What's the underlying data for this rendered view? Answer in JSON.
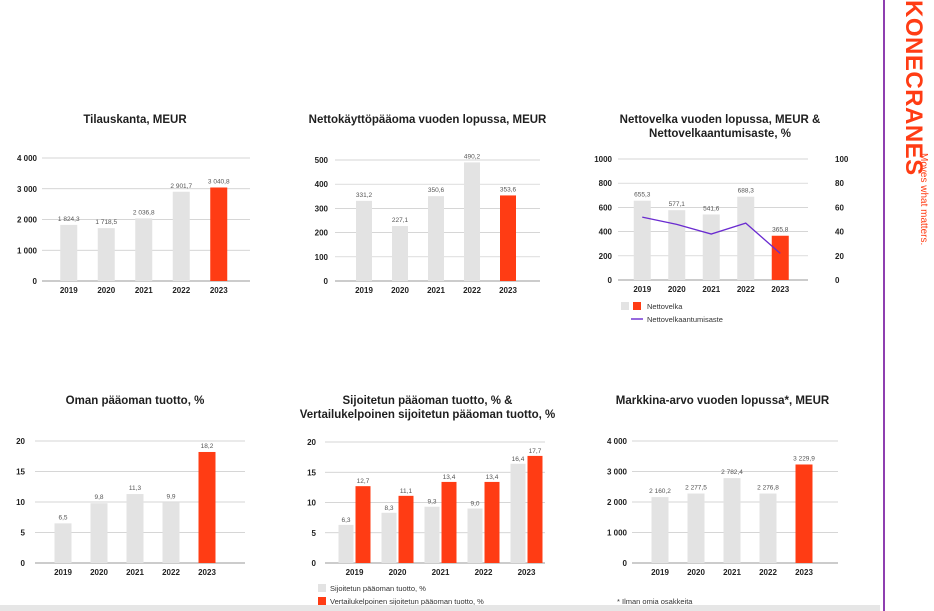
{
  "brand": {
    "logo": "KONECRANES",
    "tagline": "Moves what matters."
  },
  "colors": {
    "bar_gray": "#e3e3e3",
    "bar_red": "#ff3c14",
    "line_purple": "#6a2bd0"
  },
  "chart_data": [
    {
      "type": "bar",
      "title": "Tilauskanta, MEUR",
      "categories": [
        "2019",
        "2020",
        "2021",
        "2022",
        "2023"
      ],
      "values": [
        1824.3,
        1718.5,
        2036.8,
        2901.7,
        3040.8
      ],
      "value_labels": [
        "1 824,3",
        "1 718,5",
        "2 036,8",
        "2 901,7",
        "3 040,8"
      ],
      "highlight_index": 4,
      "ylim": [
        0,
        4000
      ],
      "yticks": [
        0,
        1000,
        2000,
        3000,
        4000
      ],
      "ytick_labels": [
        "0",
        "1 000",
        "2 000",
        "3 000",
        "4 000"
      ],
      "grid": true
    },
    {
      "type": "bar",
      "title": "Nettokäyttöpääoma vuoden lopussa, MEUR",
      "categories": [
        "2019",
        "2020",
        "2021",
        "2022",
        "2023"
      ],
      "values": [
        331.2,
        227.1,
        350.6,
        490.2,
        353.6
      ],
      "value_labels": [
        "331,2",
        "227,1",
        "350,6",
        "490,2",
        "353,6"
      ],
      "highlight_index": 4,
      "ylim": [
        0,
        500
      ],
      "yticks": [
        0,
        100,
        200,
        300,
        400,
        500
      ],
      "ytick_labels": [
        "0",
        "100",
        "200",
        "300",
        "400",
        "500"
      ],
      "grid": true
    },
    {
      "type": "bar",
      "title": "Nettovelka vuoden lopussa, MEUR & Nettovelkaantumisaste, %",
      "categories": [
        "2019",
        "2020",
        "2021",
        "2022",
        "2023"
      ],
      "values": [
        655.3,
        577.1,
        541.6,
        688.3,
        365.8
      ],
      "value_labels": [
        "655,3",
        "577,1",
        "541,6",
        "688,3",
        "365,8"
      ],
      "highlight_index": 4,
      "ylim": [
        0,
        1000
      ],
      "yticks": [
        0,
        200,
        400,
        600,
        800,
        1000
      ],
      "ytick_labels": [
        "0",
        "200",
        "400",
        "600",
        "800",
        "1000"
      ],
      "y2lim": [
        0,
        100
      ],
      "y2ticks": [
        0,
        20,
        40,
        60,
        80,
        100
      ],
      "y2tick_labels": [
        "0",
        "20",
        "40",
        "60",
        "80",
        "100"
      ],
      "line": {
        "name": "Nettovelkaantumisaste",
        "values": [
          52,
          46,
          38,
          47,
          22
        ]
      },
      "series": [
        {
          "name": "Nettovelka"
        },
        {
          "name": "Nettovelkaantumisaste"
        }
      ],
      "legend": "bottom-left",
      "grid": true
    },
    {
      "type": "bar",
      "title": "Oman pääoman tuotto, %",
      "categories": [
        "2019",
        "2020",
        "2021",
        "2022",
        "2023"
      ],
      "values": [
        6.5,
        9.8,
        11.3,
        9.9,
        18.2
      ],
      "value_labels": [
        "6,5",
        "9,8",
        "11,3",
        "9,9",
        "18,2"
      ],
      "highlight_index": 4,
      "ylim": [
        0,
        20
      ],
      "yticks": [
        0,
        5,
        10,
        15,
        20
      ],
      "ytick_labels": [
        "0",
        "5",
        "10",
        "15",
        "20"
      ],
      "grid": true
    },
    {
      "type": "bar",
      "title": "Sijoitetun pääoman tuotto, % & Vertailukelpoinen sijoitetun pääoman tuotto, %",
      "categories": [
        "2019",
        "2020",
        "2021",
        "2022",
        "2023"
      ],
      "series": [
        {
          "name": "Sijoitetun pääoman tuotto, %",
          "values": [
            6.3,
            8.3,
            9.3,
            9.0,
            16.4
          ],
          "value_labels": [
            "6,3",
            "8,3",
            "9,3",
            "9,0",
            "16,4"
          ]
        },
        {
          "name": "Vertailukelpoinen sijoitetun pääoman tuotto, %",
          "values": [
            12.7,
            11.1,
            13.4,
            13.4,
            17.7
          ],
          "value_labels": [
            "12,7",
            "11,1",
            "13,4",
            "13,4",
            "17,7"
          ]
        }
      ],
      "ylim": [
        0,
        20
      ],
      "yticks": [
        0,
        5,
        10,
        15,
        20
      ],
      "ytick_labels": [
        "0",
        "5",
        "10",
        "15",
        "20"
      ],
      "legend": "bottom-left",
      "grid": true
    },
    {
      "type": "bar",
      "title": "Markkina-arvo vuoden lopussa*, MEUR",
      "categories": [
        "2019",
        "2020",
        "2021",
        "2022",
        "2023"
      ],
      "values": [
        2160.2,
        2277.5,
        2782.4,
        2276.8,
        3229.9
      ],
      "value_labels": [
        "2 160,2",
        "2 277,5",
        "2 782,4",
        "2 276,8",
        "3 229,9"
      ],
      "highlight_index": 4,
      "ylim": [
        0,
        4000
      ],
      "yticks": [
        0,
        1000,
        2000,
        3000,
        4000
      ],
      "ytick_labels": [
        "0",
        "1 000",
        "2 000",
        "3 000",
        "4 000"
      ],
      "footnote": "* Ilman omia osakkeita",
      "grid": true
    }
  ]
}
